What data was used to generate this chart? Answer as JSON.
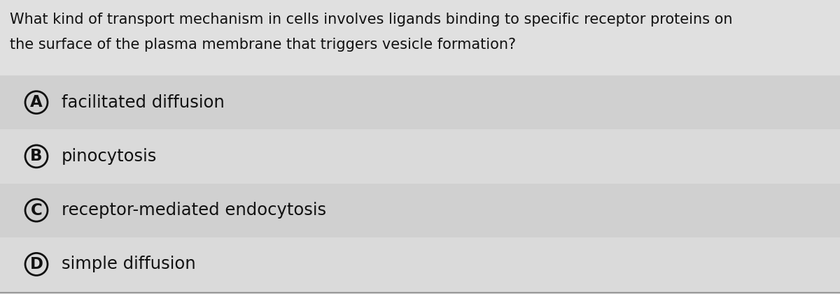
{
  "question_line1": "What kind of transport mechanism in cells involves ligands binding to specific receptor proteins on",
  "question_line2": "the surface of the plasma membrane that triggers vesicle formation?",
  "options": [
    {
      "label": "A",
      "text": "facilitated diffusion"
    },
    {
      "label": "B",
      "text": "pinocytosis"
    },
    {
      "label": "C",
      "text": "receptor-mediated endocytosis"
    },
    {
      "label": "D",
      "text": "simple diffusion"
    }
  ],
  "bg_color": "#dcdcdc",
  "question_bg": "#e0e0e0",
  "option_colors": [
    "#d0d0d0",
    "#dadada",
    "#d0d0d0",
    "#dadada"
  ],
  "text_color": "#111111",
  "question_fontsize": 15.0,
  "option_fontsize": 17.5,
  "font_family": "DejaVu Sans",
  "bottom_line_color": "#999999",
  "fig_width": 12.0,
  "fig_height": 4.21,
  "dpi": 100
}
